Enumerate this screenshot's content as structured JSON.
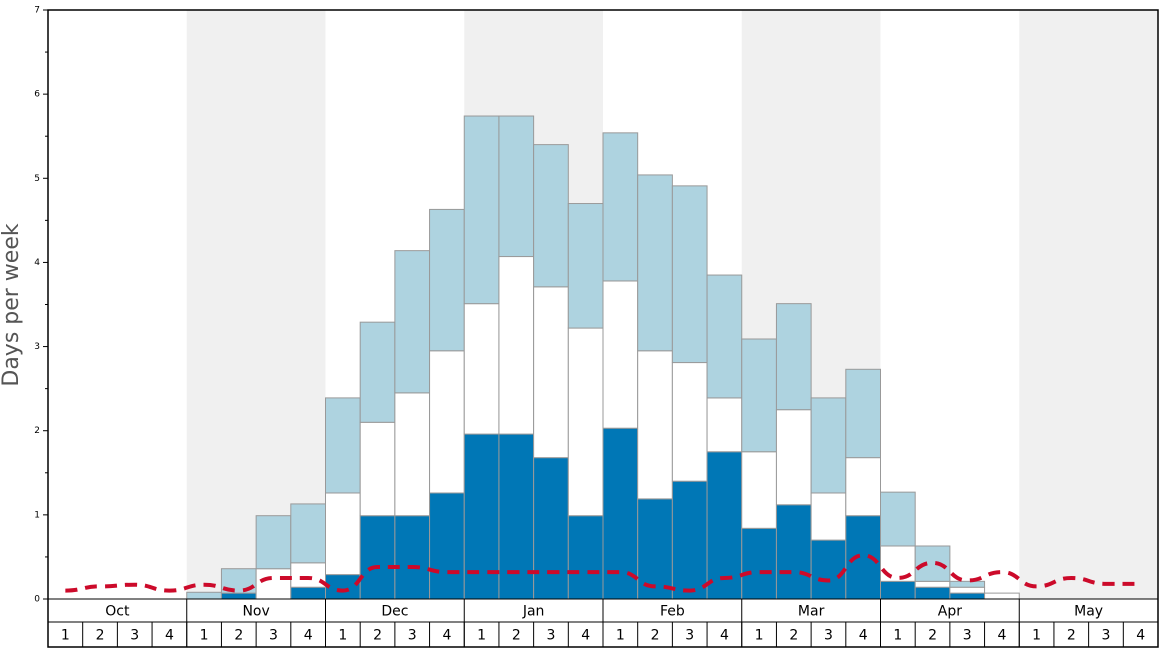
{
  "chart_data": {
    "type": "stacked_bar",
    "y_label": "Days per week",
    "months": [
      "Oct",
      "Nov",
      "Dec",
      "Jan",
      "Feb",
      "Mar",
      "Apr",
      "May"
    ],
    "categories": [
      "1",
      "2",
      "3",
      "4",
      "1",
      "2",
      "3",
      "4",
      "1",
      "2",
      "3",
      "4",
      "1",
      "2",
      "3",
      "4",
      "1",
      "2",
      "3",
      "4",
      "1",
      "2",
      "3",
      "4",
      "1",
      "2",
      "3",
      "4",
      "1",
      "2",
      "3",
      "4"
    ],
    "series": [
      {
        "color": "#0077b6",
        "values": [
          0,
          0,
          0,
          0,
          0,
          0.07,
          0,
          0.14,
          0.29,
          0.99,
          0.99,
          1.26,
          1.96,
          1.96,
          1.68,
          0.99,
          2.03,
          1.19,
          1.4,
          1.75,
          0.84,
          1.12,
          0.7,
          0.99,
          0.21,
          0.14,
          0.07,
          0,
          0,
          0,
          0,
          0
        ]
      },
      {
        "color": "#ffffff",
        "values": [
          0,
          0,
          0,
          0,
          0,
          0,
          0.36,
          0.29,
          0.97,
          1.11,
          1.46,
          1.69,
          1.55,
          2.11,
          2.03,
          2.23,
          1.75,
          1.76,
          1.41,
          0.64,
          0.91,
          1.13,
          0.56,
          0.69,
          0.42,
          0.07,
          0.07,
          0.07,
          0,
          0,
          0,
          0
        ]
      },
      {
        "color": "#aed3e0",
        "values": [
          0,
          0,
          0,
          0,
          0.08,
          0.29,
          0.63,
          0.7,
          1.13,
          1.19,
          1.69,
          1.68,
          2.23,
          1.67,
          1.69,
          1.48,
          1.76,
          2.09,
          2.1,
          1.46,
          1.34,
          1.26,
          1.13,
          1.05,
          0.64,
          0.42,
          0.07,
          0,
          0,
          0,
          0,
          0
        ]
      }
    ],
    "line": {
      "color": "#cc0a2a",
      "values": [
        0.1,
        0.15,
        0.17,
        0.1,
        0.17,
        0.1,
        0.25,
        0.25,
        0.1,
        0.38,
        0.38,
        0.32,
        0.32,
        0.32,
        0.32,
        0.32,
        0.32,
        0.15,
        0.1,
        0.25,
        0.32,
        0.32,
        0.22,
        0.52,
        0.25,
        0.43,
        0.22,
        0.32,
        0.15,
        0.25,
        0.18,
        0.18
      ]
    },
    "ylim": [
      0,
      7
    ],
    "yticks": [
      0,
      1,
      2,
      3,
      4,
      5,
      6,
      7
    ],
    "minor_yticks": [
      0.5,
      1.5,
      2.5,
      3.5,
      4.5,
      5.5,
      6.5
    ],
    "band_color": "#f0f0f0"
  }
}
